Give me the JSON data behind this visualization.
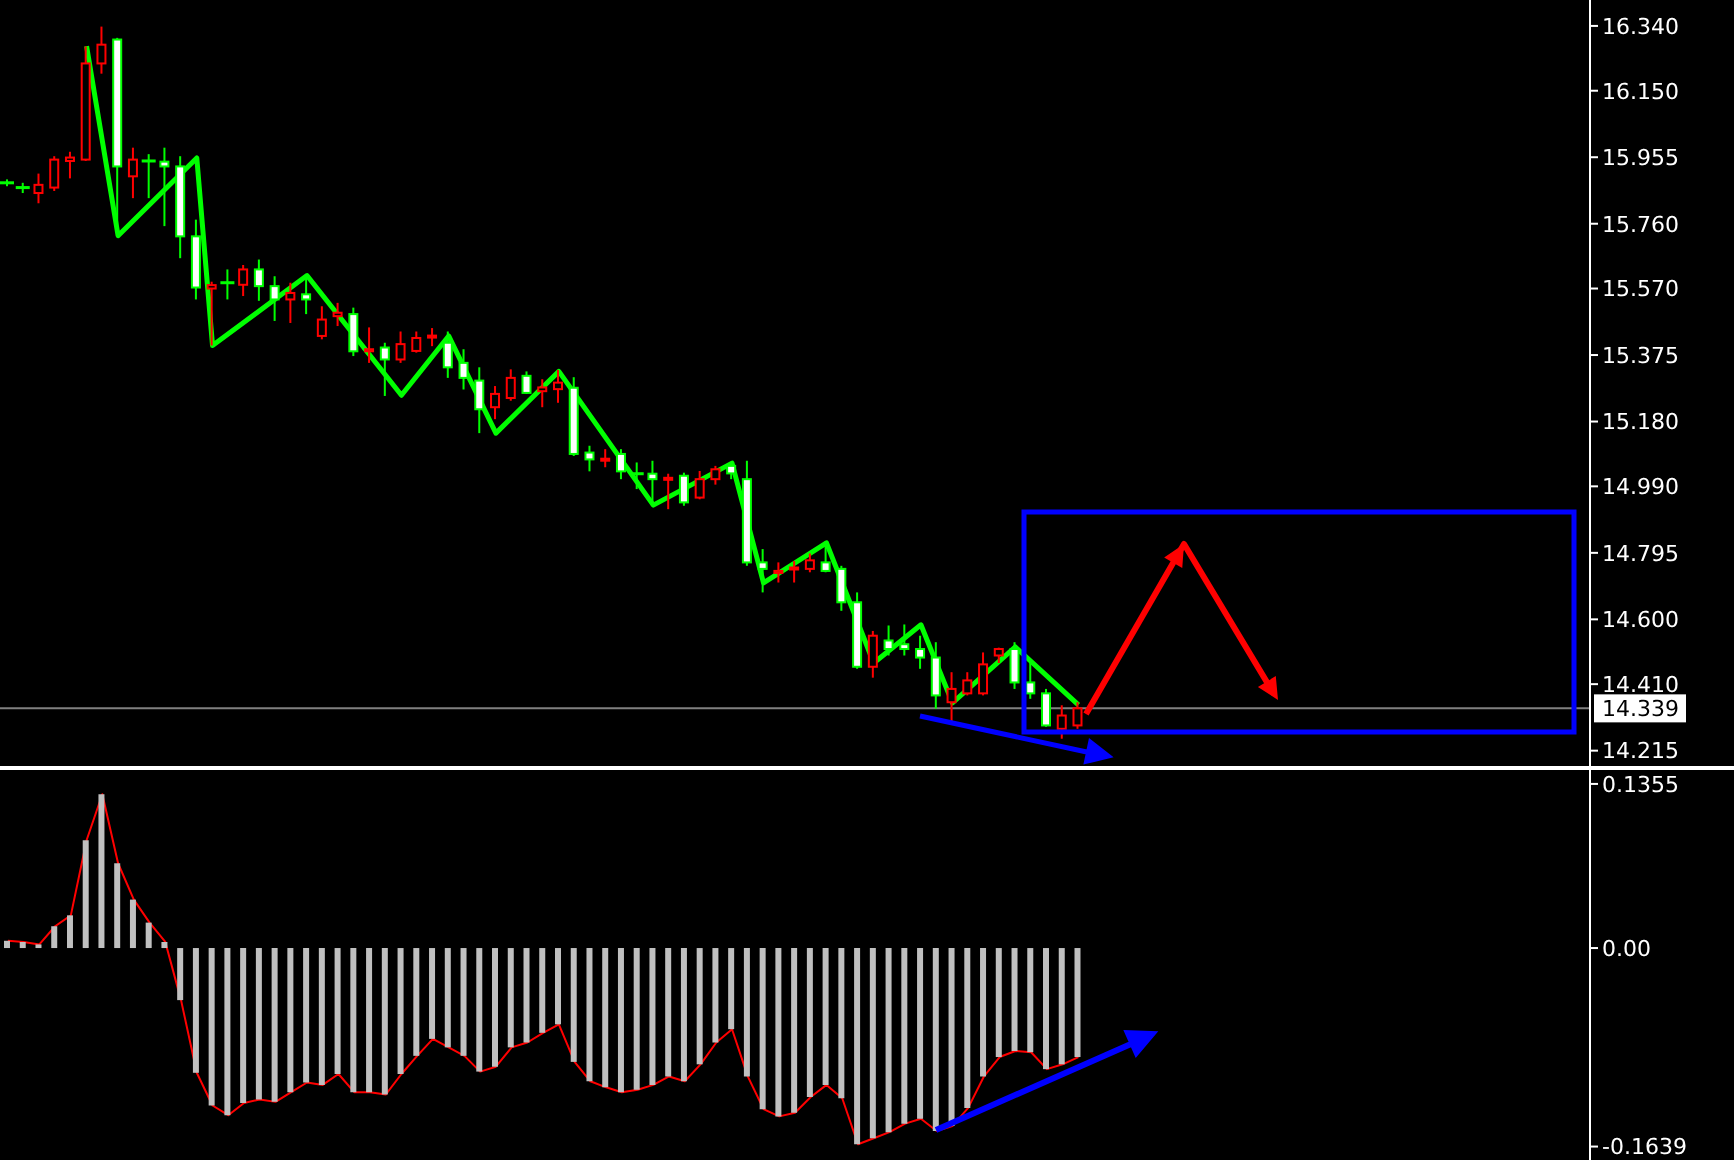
{
  "chart_data": [
    {
      "type": "candlestick",
      "tick_labels": "y",
      "categories": [
        null,
        null,
        null,
        null,
        null,
        null,
        null,
        null,
        null,
        null,
        null,
        null,
        null,
        null,
        null,
        null,
        null,
        null,
        null,
        null,
        null,
        null,
        null,
        null,
        null,
        null,
        null,
        null,
        null,
        null,
        null,
        null,
        null,
        null,
        null,
        null,
        null,
        null,
        null,
        null,
        null,
        null,
        null,
        null,
        null,
        null,
        null,
        null,
        null,
        null,
        null,
        null,
        null,
        null,
        null,
        null,
        null,
        null,
        null,
        null,
        null,
        null,
        null,
        null,
        null,
        null,
        null,
        null,
        null,
        null,
        null,
        null,
        null,
        null,
        null,
        null,
        null,
        null,
        null,
        null,
        null,
        null,
        null,
        null,
        null,
        null,
        null,
        null,
        null,
        null,
        null,
        null,
        null,
        null,
        null,
        null,
        null,
        null,
        null,
        null,
        null
      ],
      "ohlc": [
        [
          15.88,
          15.89,
          15.87,
          15.88
        ],
        [
          15.866,
          15.88,
          15.85,
          15.866
        ],
        [
          15.85,
          15.907,
          15.82,
          15.874
        ],
        [
          15.866,
          15.958,
          15.856,
          15.948
        ],
        [
          15.944,
          15.971,
          15.893,
          15.954
        ],
        [
          15.948,
          16.28,
          15.944,
          16.23
        ],
        [
          16.23,
          16.338,
          16.2,
          16.285
        ],
        [
          16.3,
          16.305,
          15.737,
          15.928
        ],
        [
          15.899,
          15.983,
          15.835,
          15.948
        ],
        [
          15.944,
          15.964,
          15.835,
          15.944
        ],
        [
          15.942,
          15.983,
          15.753,
          15.928
        ],
        [
          15.928,
          15.958,
          15.659,
          15.723
        ],
        [
          15.723,
          15.772,
          15.538,
          15.573
        ],
        [
          15.57,
          15.59,
          15.403,
          15.58
        ],
        [
          15.587,
          15.626,
          15.538,
          15.587
        ],
        [
          15.581,
          15.639,
          15.548,
          15.626
        ],
        [
          15.626,
          15.655,
          15.534,
          15.577
        ],
        [
          15.577,
          15.606,
          15.475,
          15.538
        ],
        [
          15.538,
          15.587,
          15.469,
          15.557
        ],
        [
          15.553,
          15.606,
          15.495,
          15.538
        ],
        [
          15.431,
          15.518,
          15.421,
          15.479
        ],
        [
          15.489,
          15.528,
          15.46,
          15.499
        ],
        [
          15.495,
          15.514,
          15.372,
          15.386
        ],
        [
          15.386,
          15.456,
          15.352,
          15.392
        ],
        [
          15.397,
          15.411,
          15.255,
          15.362
        ],
        [
          15.362,
          15.444,
          15.352,
          15.407
        ],
        [
          15.387,
          15.444,
          15.382,
          15.425
        ],
        [
          15.427,
          15.454,
          15.401,
          15.432
        ],
        [
          15.411,
          15.444,
          15.308,
          15.339
        ],
        [
          15.352,
          15.392,
          15.274,
          15.308
        ],
        [
          15.3,
          15.339,
          15.146,
          15.216
        ],
        [
          15.222,
          15.284,
          15.187,
          15.261
        ],
        [
          15.249,
          15.333,
          15.241,
          15.308
        ],
        [
          15.314,
          15.327,
          15.261,
          15.264
        ],
        [
          15.269,
          15.304,
          15.222,
          15.28
        ],
        [
          15.275,
          15.331,
          15.235,
          15.294
        ],
        [
          15.279,
          15.31,
          15.079,
          15.085
        ],
        [
          15.089,
          15.109,
          15.034,
          15.069
        ],
        [
          15.069,
          15.099,
          15.046,
          15.071
        ],
        [
          15.085,
          15.099,
          15.011,
          15.034
        ],
        [
          15.027,
          15.06,
          14.982,
          15.027
        ],
        [
          15.027,
          15.065,
          14.933,
          15.011
        ],
        [
          15.013,
          15.027,
          14.923,
          15.015
        ],
        [
          15.021,
          15.03,
          14.933,
          14.943
        ],
        [
          14.957,
          15.035,
          14.952,
          15.011
        ],
        [
          15.011,
          15.05,
          14.995,
          15.04
        ],
        [
          15.05,
          15.06,
          15.011,
          15.028
        ],
        [
          15.011,
          15.065,
          14.757,
          14.767
        ],
        [
          14.767,
          14.806,
          14.679,
          14.748
        ],
        [
          14.736,
          14.767,
          14.708,
          14.742
        ],
        [
          14.748,
          14.771,
          14.708,
          14.752
        ],
        [
          14.748,
          14.793,
          14.738,
          14.773
        ],
        [
          14.767,
          14.829,
          14.738,
          14.742
        ],
        [
          14.748,
          14.757,
          14.625,
          14.65
        ],
        [
          14.65,
          14.679,
          14.455,
          14.461
        ],
        [
          14.461,
          14.566,
          14.429,
          14.552
        ],
        [
          14.538,
          14.582,
          14.494,
          14.513
        ],
        [
          14.527,
          14.585,
          14.494,
          14.513
        ],
        [
          14.513,
          14.552,
          14.455,
          14.488
        ],
        [
          14.488,
          14.533,
          14.338,
          14.377
        ],
        [
          14.357,
          14.445,
          14.298,
          14.396
        ],
        [
          14.383,
          14.445,
          14.377,
          14.421
        ],
        [
          14.383,
          14.503,
          14.377,
          14.468
        ],
        [
          14.494,
          14.517,
          14.472,
          14.513
        ],
        [
          14.513,
          14.533,
          14.396,
          14.415
        ],
        [
          14.415,
          14.474,
          14.367,
          14.383
        ],
        [
          14.383,
          14.396,
          14.285,
          14.289
        ],
        [
          14.279,
          14.348,
          14.25,
          14.318
        ],
        [
          14.289,
          14.357,
          14.279,
          14.339
        ],
        null,
        null,
        null,
        null,
        null,
        null,
        null,
        null,
        null,
        null,
        null,
        null,
        null,
        null,
        null,
        null,
        null,
        null,
        null,
        null,
        null,
        null,
        null,
        null,
        null,
        null,
        null,
        null,
        null,
        null,
        null,
        null
      ],
      "colors": [
        "#00ff00",
        "#00ff00",
        "#ff0000",
        "#ff0000",
        "#ff0000",
        "#ff0000",
        "#ff0000",
        "#ffffff",
        "#ff0000",
        "#00ff00",
        "#ffffff",
        "#ffffff",
        "#ffffff",
        "#ff0000",
        "#00ff00",
        "#ff0000",
        "#ffffff",
        "#ffffff",
        "#ff0000",
        "#ffffff",
        "#ff0000",
        "#ff0000",
        "#ffffff",
        "#ff0000",
        "#ffffff",
        "#ff0000",
        "#ff0000",
        "#ff0000",
        "#ffffff",
        "#ffffff",
        "#ffffff",
        "#ff0000",
        "#ff0000",
        "#ffffff",
        "#ff0000",
        "#ff0000",
        "#ffffff",
        "#ffffff",
        "#ff0000",
        "#ffffff",
        "#00ff00",
        "#ffffff",
        "#ff0000",
        "#ffffff",
        "#ff0000",
        "#ff0000",
        "#ffffff",
        "#ffffff",
        "#ffffff",
        "#ff0000",
        "#ff0000",
        "#ff0000",
        "#ffffff",
        "#ffffff",
        "#ffffff",
        "#ff0000",
        "#ffffff",
        "#ffffff",
        "#ffffff",
        "#ffffff",
        "#ff0000",
        "#ff0000",
        "#ff0000",
        "#ff0000",
        "#ffffff",
        "#ffffff",
        "#ffffff",
        "#ff0000",
        "#ff0000",
        null,
        null,
        null,
        null,
        null,
        null,
        null,
        null,
        null,
        null,
        null,
        null,
        null,
        null,
        null,
        null,
        null,
        null,
        null,
        null,
        null,
        null,
        null,
        null,
        null,
        null,
        null,
        null,
        null,
        null,
        null,
        null
      ],
      "series": [
        {
          "type": "line",
          "color": "#00ff00",
          "values": [
            null,
            null,
            null,
            null,
            null,
            16.281,
            null,
            15.725,
            null,
            null,
            null,
            null,
            15.953,
            15.403,
            null,
            null,
            null,
            null,
            null,
            15.608,
            null,
            null,
            null,
            null,
            null,
            15.257,
            null,
            null,
            15.431,
            null,
            null,
            15.146,
            null,
            null,
            null,
            15.327,
            null,
            null,
            null,
            null,
            null,
            14.935,
            null,
            null,
            null,
            null,
            15.058,
            null,
            14.707,
            null,
            null,
            null,
            14.824,
            null,
            null,
            14.472,
            null,
            null,
            14.584,
            null,
            14.355,
            null,
            null,
            null,
            14.519,
            null,
            null,
            null,
            14.349,
            null,
            null,
            null,
            null,
            null,
            null,
            null,
            null,
            null,
            null,
            null,
            null,
            null,
            null,
            null,
            null,
            null,
            null,
            null,
            null,
            null,
            null,
            null,
            null,
            null,
            null,
            null,
            null,
            null,
            null,
            null,
            null
          ]
        }
      ],
      "ylim": [
        14.17,
        16.416
      ],
      "yticks": [
        14.215,
        {
          "value": 14.41,
          "label": "14.410"
        },
        {
          "value": 14.6,
          "label": "14.600"
        },
        14.795,
        {
          "value": 14.99,
          "label": "14.990"
        },
        {
          "value": 15.18,
          "label": "15.180"
        },
        15.375,
        {
          "value": 15.57,
          "label": "15.570"
        },
        {
          "value": 15.76,
          "label": "15.760"
        },
        15.955,
        {
          "value": 16.15,
          "label": "16.150"
        },
        {
          "value": 16.34,
          "label": "16.340"
        }
      ],
      "ref_lines": [
        {
          "axis": "y",
          "value": 14.339,
          "label": "14.339",
          "color": "#808080"
        }
      ]
    },
    {
      "type": "bar",
      "tick_labels": "y",
      "categories": [
        null,
        null,
        null,
        null,
        null,
        null,
        null,
        null,
        null,
        null,
        null,
        null,
        null,
        null,
        null,
        null,
        null,
        null,
        null,
        null,
        null,
        null,
        null,
        null,
        null,
        null,
        null,
        null,
        null,
        null,
        null,
        null,
        null,
        null,
        null,
        null,
        null,
        null,
        null,
        null,
        null,
        null,
        null,
        null,
        null,
        null,
        null,
        null,
        null,
        null,
        null,
        null,
        null,
        null,
        null,
        null,
        null,
        null,
        null,
        null,
        null,
        null,
        null,
        null,
        null,
        null,
        null,
        null,
        null,
        null,
        null,
        null,
        null,
        null,
        null,
        null,
        null,
        null,
        null,
        null,
        null,
        null,
        null,
        null,
        null,
        null,
        null,
        null,
        null,
        null,
        null,
        null,
        null,
        null,
        null,
        null,
        null,
        null,
        null,
        null,
        null
      ],
      "series": [
        {
          "type": "bar",
          "color": "#c0c0c0",
          "values": [
            0.006,
            0.005,
            0.003,
            0.018,
            0.027,
            0.089,
            0.127,
            0.07,
            0.04,
            0.021,
            0.005,
            -0.043,
            -0.103,
            -0.13,
            -0.138,
            -0.128,
            -0.125,
            -0.127,
            -0.119,
            -0.111,
            -0.113,
            -0.104,
            -0.119,
            -0.119,
            -0.121,
            -0.104,
            -0.089,
            -0.075,
            -0.082,
            -0.089,
            -0.102,
            -0.098,
            -0.082,
            -0.078,
            -0.07,
            -0.063,
            -0.094,
            -0.11,
            -0.115,
            -0.119,
            -0.117,
            -0.113,
            -0.106,
            -0.11,
            -0.096,
            -0.078,
            -0.067,
            -0.106,
            -0.133,
            -0.139,
            -0.136,
            -0.123,
            -0.113,
            -0.124,
            -0.162,
            -0.157,
            -0.152,
            -0.145,
            -0.141,
            -0.151,
            -0.147,
            -0.132,
            -0.106,
            -0.09,
            -0.085,
            -0.086,
            -0.1,
            -0.096,
            -0.09,
            null,
            null,
            null,
            null,
            null,
            null,
            null,
            null,
            null,
            null,
            null,
            null,
            null,
            null,
            null,
            null,
            null,
            null,
            null,
            null,
            null,
            null,
            null,
            null,
            null,
            null,
            null,
            null,
            null,
            null,
            null,
            null
          ]
        },
        {
          "type": "line",
          "color": "#ff0000",
          "values": [
            0.006,
            0.005,
            0.003,
            0.018,
            0.027,
            0.089,
            0.127,
            0.07,
            0.04,
            0.021,
            0.005,
            -0.043,
            -0.103,
            -0.13,
            -0.138,
            -0.128,
            -0.125,
            -0.127,
            -0.119,
            -0.111,
            -0.113,
            -0.104,
            -0.119,
            -0.119,
            -0.121,
            -0.104,
            -0.089,
            -0.075,
            -0.082,
            -0.089,
            -0.102,
            -0.098,
            -0.082,
            -0.078,
            -0.07,
            -0.063,
            -0.094,
            -0.11,
            -0.115,
            -0.119,
            -0.117,
            -0.113,
            -0.106,
            -0.11,
            -0.096,
            -0.078,
            -0.067,
            -0.106,
            -0.133,
            -0.139,
            -0.136,
            -0.123,
            -0.113,
            -0.124,
            -0.162,
            -0.157,
            -0.152,
            -0.145,
            -0.141,
            -0.151,
            -0.147,
            -0.132,
            -0.106,
            -0.09,
            -0.085,
            -0.086,
            -0.1,
            -0.096,
            -0.09,
            null,
            null,
            null,
            null,
            null,
            null,
            null,
            null,
            null,
            null,
            null,
            null,
            null,
            null,
            null,
            null,
            null,
            null,
            null,
            null,
            null,
            null,
            null,
            null,
            null,
            null,
            null,
            null,
            null,
            null,
            null,
            null
          ]
        }
      ],
      "ylim": [
        -0.175,
        0.147
      ],
      "yticks": [
        -0.1639,
        {
          "value": 0,
          "label": "0.00"
        },
        0.1355
      ]
    }
  ]
}
